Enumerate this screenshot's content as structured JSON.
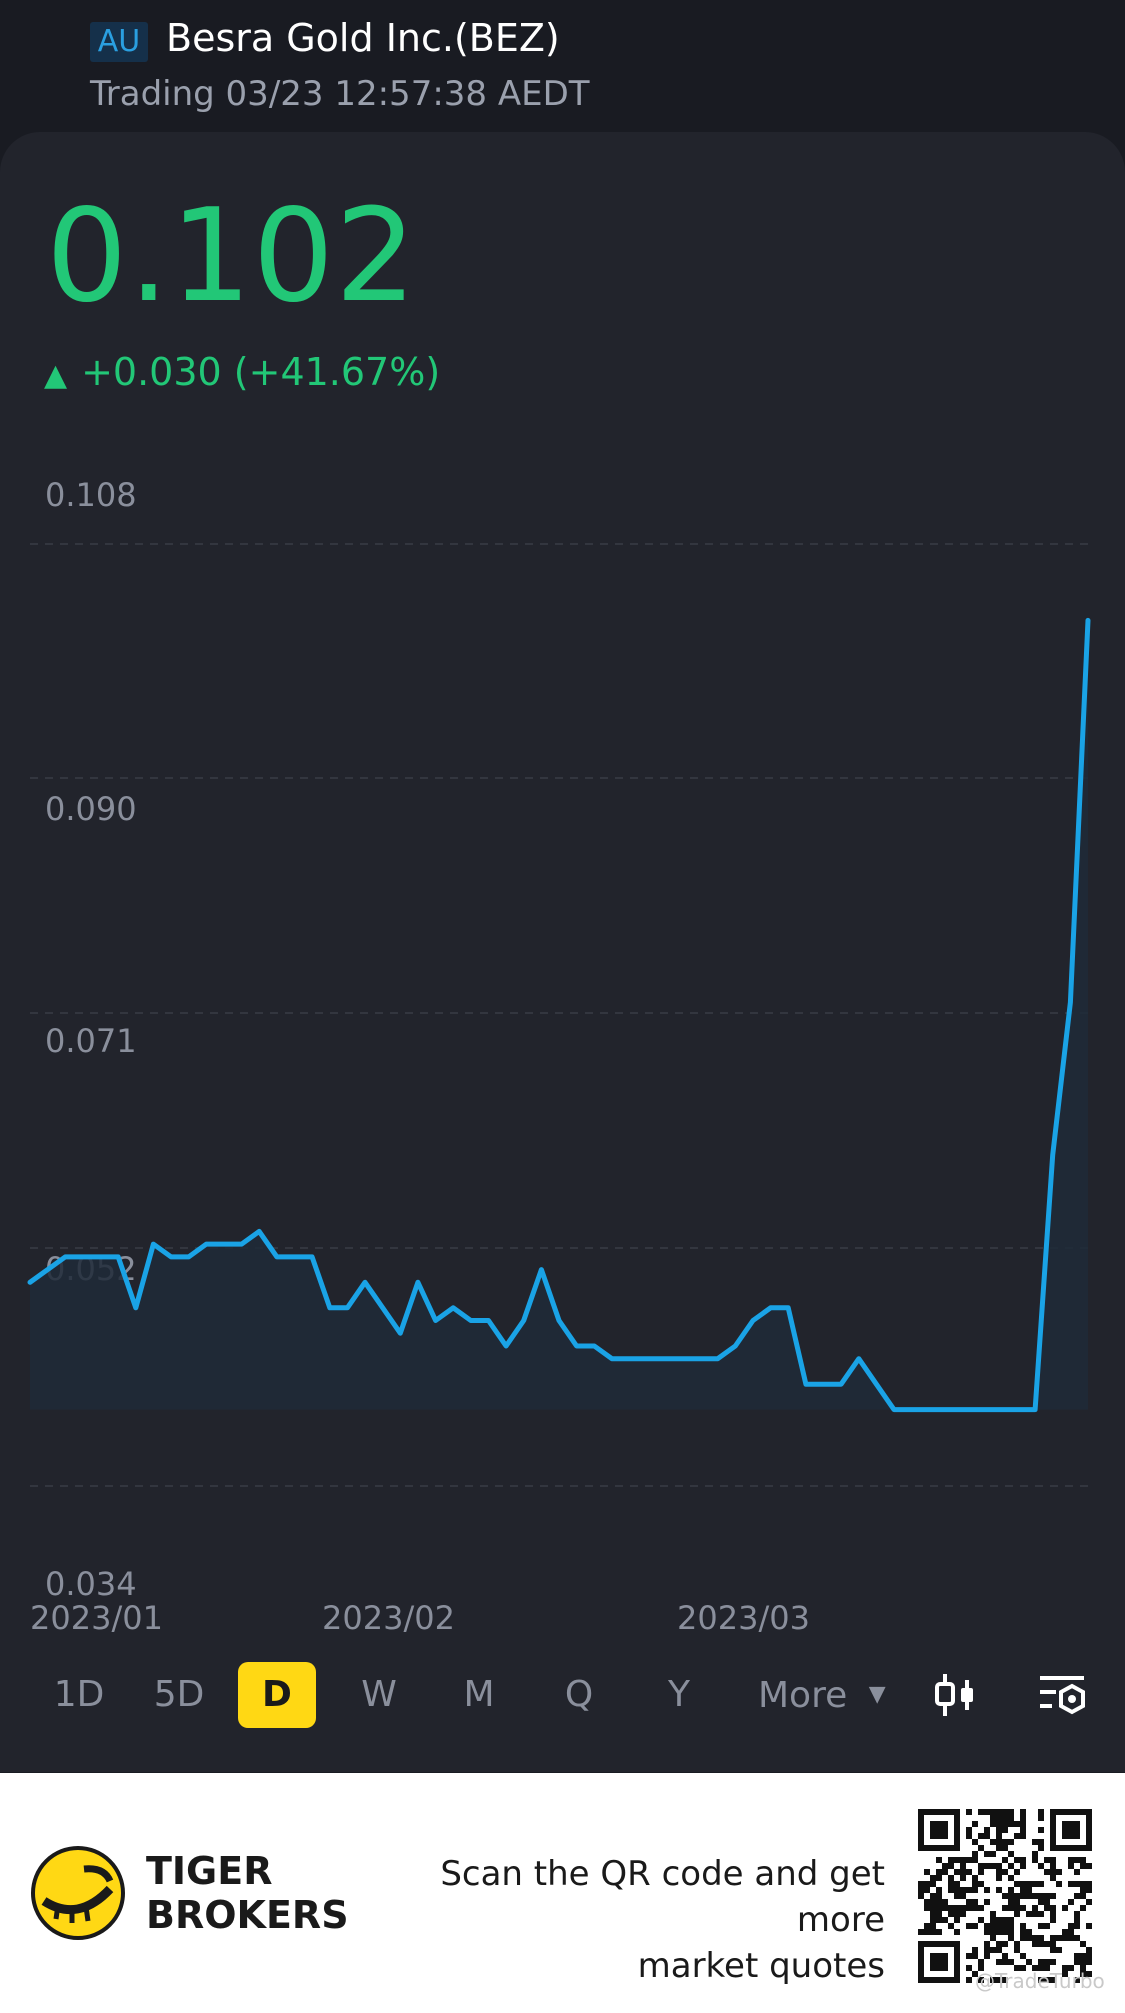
{
  "header": {
    "market": "AU",
    "stock_name": "Besra Gold Inc.(BEZ)",
    "trading_status": "Trading 03/23 12:57:38 AEDT"
  },
  "quote": {
    "price": "0.102",
    "change_arrow": "▲",
    "change_text": "+0.030 (+41.67%)"
  },
  "chart_data": {
    "type": "area",
    "title": "",
    "xlabel": "",
    "ylabel": "",
    "y_ticks": [
      "0.108",
      "0.090",
      "0.071",
      "0.052",
      "0.034"
    ],
    "ylim": [
      0.034,
      0.108
    ],
    "x_ticks": [
      "2023/01",
      "2023/02",
      "2023/03"
    ],
    "grid": true,
    "line_color": "#1aa3e6",
    "series": [
      {
        "values": [
          0.05,
          0.051,
          0.052,
          0.052,
          0.052,
          0.052,
          0.048,
          0.053,
          0.052,
          0.052,
          0.053,
          0.053,
          0.053,
          0.054,
          0.052,
          0.052,
          0.052,
          0.048,
          0.048,
          0.05,
          0.048,
          0.046,
          0.05,
          0.047,
          0.048,
          0.047,
          0.047,
          0.045,
          0.047,
          0.051,
          0.047,
          0.045,
          0.045,
          0.044,
          0.044,
          0.044,
          0.044,
          0.044,
          0.044,
          0.044,
          0.045,
          0.047,
          0.048,
          0.048,
          0.042,
          0.042,
          0.042,
          0.044,
          0.042,
          0.04,
          0.04,
          0.04,
          0.04,
          0.04,
          0.04,
          0.04,
          0.04,
          0.04,
          0.06,
          0.072,
          0.102
        ]
      }
    ]
  },
  "periods": [
    "1D",
    "5D",
    "D",
    "W",
    "M",
    "Q",
    "Y"
  ],
  "active_period": "D",
  "more_label": "More",
  "footer": {
    "brand_line1": "TIGER",
    "brand_line2": "BROKERS",
    "scan_line1": "Scan the QR code and get more",
    "scan_line2": "market quotes",
    "watermark": "@TradeTurbo"
  },
  "colors": {
    "up": "#22c777",
    "accent": "#ffd814",
    "line": "#1aa3e6",
    "badge_text": "#2a9fe0"
  },
  "icons": [
    "candlestick-icon",
    "chart-settings-icon",
    "tiger-logo-icon",
    "qr-code"
  ]
}
